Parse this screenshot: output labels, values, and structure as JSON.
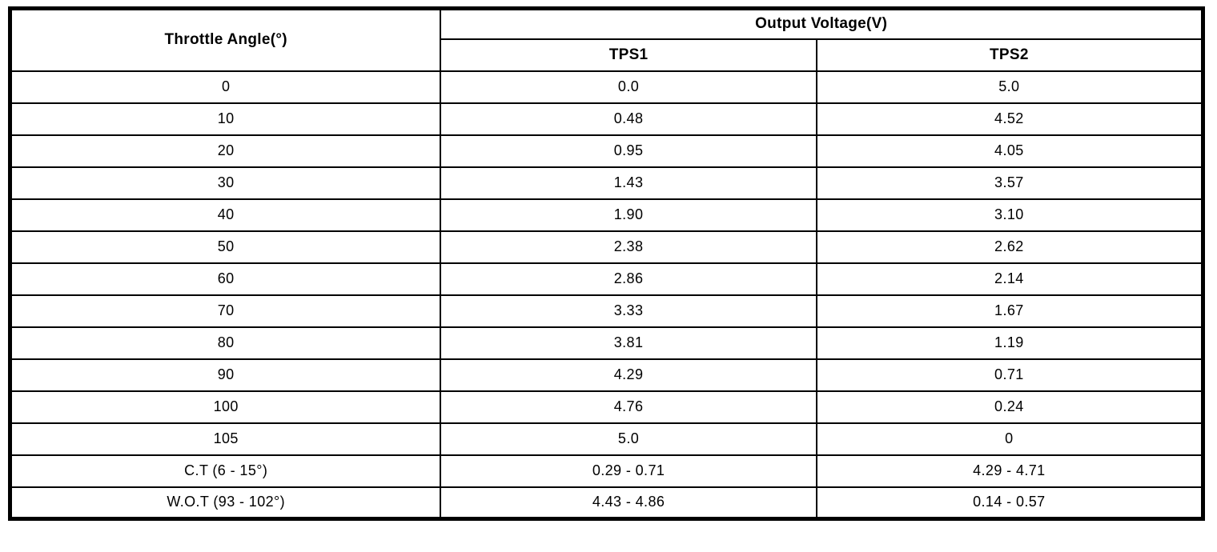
{
  "page": {
    "background_color": "#ffffff",
    "border_color": "#000000",
    "text_color": "#000000"
  },
  "table": {
    "headers": {
      "throttle_angle": "Throttle Angle(°)",
      "output_voltage_group": "Output Voltage(V)",
      "tps1": "TPS1",
      "tps2": "TPS2"
    },
    "rows": [
      {
        "angle": "0",
        "tps1": "0.0",
        "tps2": "5.0"
      },
      {
        "angle": "10",
        "tps1": "0.48",
        "tps2": "4.52"
      },
      {
        "angle": "20",
        "tps1": "0.95",
        "tps2": "4.05"
      },
      {
        "angle": "30",
        "tps1": "1.43",
        "tps2": "3.57"
      },
      {
        "angle": "40",
        "tps1": "1.90",
        "tps2": "3.10"
      },
      {
        "angle": "50",
        "tps1": "2.38",
        "tps2": "2.62"
      },
      {
        "angle": "60",
        "tps1": "2.86",
        "tps2": "2.14"
      },
      {
        "angle": "70",
        "tps1": "3.33",
        "tps2": "1.67"
      },
      {
        "angle": "80",
        "tps1": "3.81",
        "tps2": "1.19"
      },
      {
        "angle": "90",
        "tps1": "4.29",
        "tps2": "0.71"
      },
      {
        "angle": "100",
        "tps1": "4.76",
        "tps2": "0.24"
      },
      {
        "angle": "105",
        "tps1": "5.0",
        "tps2": "0"
      },
      {
        "angle": "C.T (6 - 15°)",
        "tps1": "0.29 - 0.71",
        "tps2": "4.29 - 4.71"
      },
      {
        "angle": "W.O.T (93 - 102°)",
        "tps1": "4.43 - 4.86",
        "tps2": "0.14 - 0.57"
      }
    ]
  }
}
